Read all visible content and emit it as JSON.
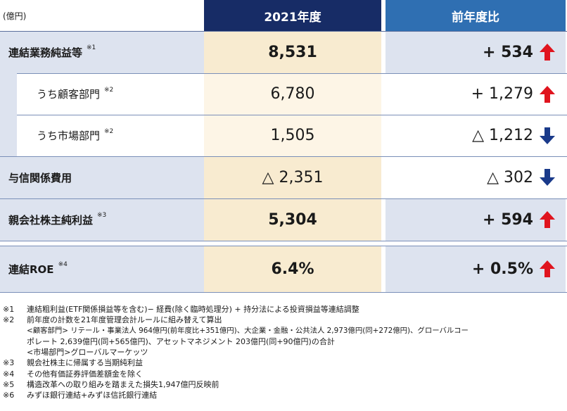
{
  "unit": "(億円)",
  "headers": {
    "year": "2021年度",
    "diff": "前年度比"
  },
  "colors": {
    "header_year": "#172c66",
    "header_diff": "#2f6fb2",
    "up_arrow": "#e0141e",
    "down_arrow": "#1a3a8a",
    "value_bg": "#f8ebd0",
    "label_bg": "#dde3ef"
  },
  "rows": [
    {
      "label": "連結業務純益等",
      "note": "※1",
      "value": "8,531",
      "diff_prefix": "+",
      "diff": "534",
      "direction": "up"
    },
    {
      "label": "うち顧客部門",
      "note": "※2",
      "value": "6,780",
      "diff_prefix": "+",
      "diff": "1,279",
      "direction": "up"
    },
    {
      "label": "うち市場部門",
      "note": "※2",
      "value": "1,505",
      "diff_prefix": "△",
      "diff": "1,212",
      "direction": "down"
    },
    {
      "label": "与信関係費用",
      "note": "",
      "value": "△ 2,351",
      "diff_prefix": "△",
      "diff": "302",
      "direction": "down"
    },
    {
      "label": "親会社株主純利益",
      "note": "※3",
      "value": "5,304",
      "diff_prefix": "+",
      "diff": "594",
      "direction": "up"
    },
    {
      "label": "連結ROE",
      "note": "※4",
      "value": "6.4%",
      "diff_prefix": "+",
      "diff": "0.5%",
      "direction": "up"
    }
  ],
  "notes": [
    {
      "mark": "※1",
      "text": "連結粗利益(ETF関係損益等を含む)− 経費(除く臨時処理分) + 持分法による投資損益等連結調整"
    },
    {
      "mark": "※2",
      "text": "前年度の計数を21年度管理会計ルールに組み替えて算出"
    },
    {
      "mark": "",
      "text": "<顧客部門> リテール・事業法人 964億円(前年度比+351億円)、大企業・金融・公共法人 2,973億円(同+272億円)、グローバルコー"
    },
    {
      "mark": "",
      "text": "ポレート 2,639億円(同+565億円)、アセットマネジメント 203億円(同+90億円)の合計"
    },
    {
      "mark": "",
      "text": "<市場部門>グローバルマーケッツ"
    },
    {
      "mark": "※3",
      "text": "親会社株主に帰属する当期純利益"
    },
    {
      "mark": "※4",
      "text": "その他有価証券評価差額金を除く"
    },
    {
      "mark": "※5",
      "text": "構造改革への取り組みを踏まえた損失1,947億円反映前"
    },
    {
      "mark": "※6",
      "text": "みずほ銀行連結+みずほ信託銀行連結"
    }
  ]
}
